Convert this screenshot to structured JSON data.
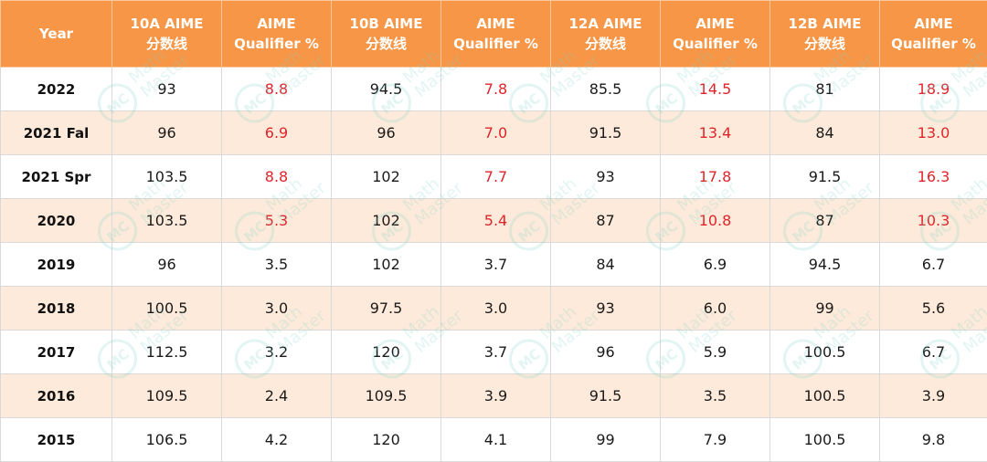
{
  "header": {
    "year": "Year",
    "cols": [
      {
        "line1": "10A AIME",
        "line2": "分数线"
      },
      {
        "line1": "AIME",
        "line2": "Qualifier %"
      },
      {
        "line1": "10B AIME",
        "line2": "分数线"
      },
      {
        "line1": "AIME",
        "line2": "Qualifier %"
      },
      {
        "line1": "12A AIME",
        "line2": "分数线"
      },
      {
        "line1": "AIME",
        "line2": "Qualifier %"
      },
      {
        "line1": "12B AIME",
        "line2": "分数线"
      },
      {
        "line1": "AIME",
        "line2": "Qualifier %"
      }
    ]
  },
  "rows": [
    {
      "year": "2022",
      "v": [
        "93",
        "8.8",
        "94.5",
        "7.8",
        "85.5",
        "14.5",
        "81",
        "18.9"
      ],
      "highlight_pct": true
    },
    {
      "year": "2021 Fal",
      "v": [
        "96",
        "6.9",
        "96",
        "7.0",
        "91.5",
        "13.4",
        "84",
        "13.0"
      ],
      "highlight_pct": true
    },
    {
      "year": "2021 Spr",
      "v": [
        "103.5",
        "8.8",
        "102",
        "7.7",
        "93",
        "17.8",
        "91.5",
        "16.3"
      ],
      "highlight_pct": true
    },
    {
      "year": "2020",
      "v": [
        "103.5",
        "5.3",
        "102",
        "5.4",
        "87",
        "10.8",
        "87",
        "10.3"
      ],
      "highlight_pct": true
    },
    {
      "year": "2019",
      "v": [
        "96",
        "3.5",
        "102",
        "3.7",
        "84",
        "6.9",
        "94.5",
        "6.7"
      ],
      "highlight_pct": false
    },
    {
      "year": "2018",
      "v": [
        "100.5",
        "3.0",
        "97.5",
        "3.0",
        "93",
        "6.0",
        "99",
        "5.6"
      ],
      "highlight_pct": false
    },
    {
      "year": "2017",
      "v": [
        "112.5",
        "3.2",
        "120",
        "3.7",
        "96",
        "5.9",
        "100.5",
        "6.7"
      ],
      "highlight_pct": false
    },
    {
      "year": "2016",
      "v": [
        "109.5",
        "2.4",
        "109.5",
        "3.9",
        "91.5",
        "3.5",
        "100.5",
        "3.9"
      ],
      "highlight_pct": false
    },
    {
      "year": "2015",
      "v": [
        "106.5",
        "4.2",
        "120",
        "4.1",
        "99",
        "7.9",
        "100.5",
        "9.8"
      ],
      "highlight_pct": false
    }
  ],
  "colors": {
    "header_bg": "#f79646",
    "band_bg": "#fdeada",
    "highlight_text": "#e0242a",
    "watermark": "#7fd4c8"
  },
  "watermark_text": {
    "line1": "Math",
    "line2": "Master",
    "logo": "MC"
  }
}
